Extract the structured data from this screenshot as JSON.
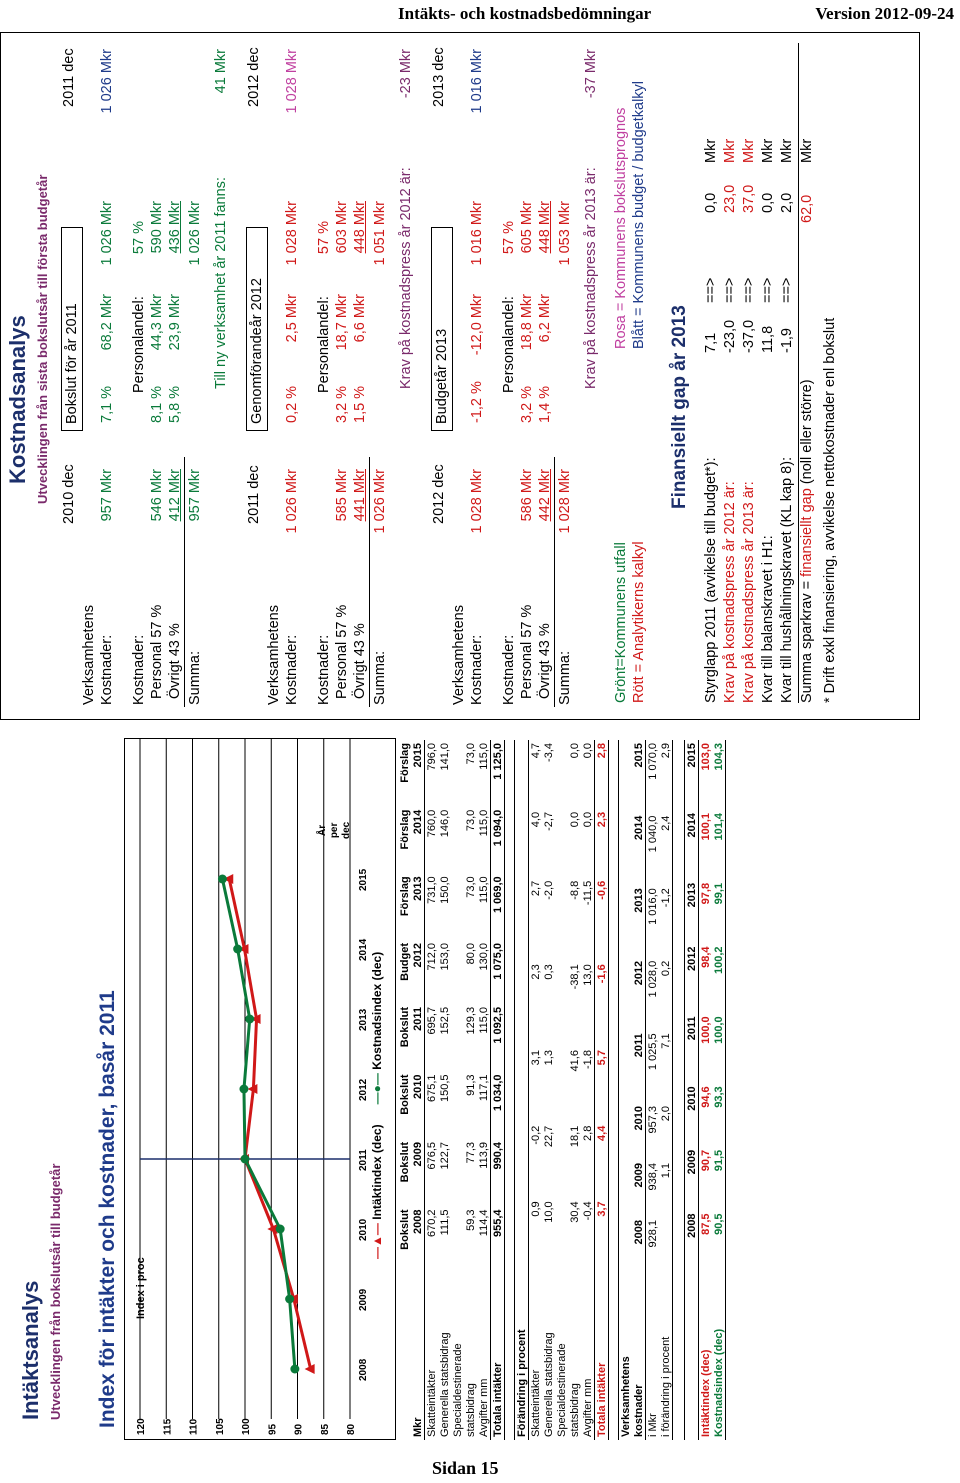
{
  "header": {
    "left": "Intäkts- och kostnadsbedömningar",
    "right": "Version 2012-09-24"
  },
  "footer": "Sidan 15",
  "left": {
    "title": "Intäktsanalys",
    "subtitle": "Utvecklingen från bokslutsår till budgetår",
    "chart_title": "Index för intäkter och kostnader, basår 2011",
    "ylabel": "Index i proc",
    "xaxis_note": [
      "År",
      "per",
      "dec"
    ],
    "legend": [
      "Intäktindex (dec)",
      "Kostnadsindex (dec)"
    ]
  },
  "chart_data": {
    "type": "line",
    "title": "Index för intäkter och kostnader, basår 2011",
    "ylabel": "Index i proc",
    "categories": [
      "2008",
      "2009",
      "2010",
      "2011",
      "2012",
      "2013",
      "2014",
      "2015"
    ],
    "yticks": [
      "80",
      "85",
      "90",
      "95",
      "100",
      "105",
      "110",
      "115",
      "120"
    ],
    "ylim": [
      80,
      120
    ],
    "series": [
      {
        "name": "Intäktindex (dec)",
        "color": "#d01818",
        "values": [
          87.5,
          90.7,
          94.6,
          100.0,
          98.4,
          97.8,
          100.1,
          103.0
        ]
      },
      {
        "name": "Kostnadsindex (dec)",
        "color": "#0a7a3a",
        "values": [
          90.5,
          91.5,
          93.3,
          100.0,
          100.2,
          99.1,
          101.4,
          104.3
        ]
      }
    ]
  },
  "t1": {
    "head1": [
      "",
      "Bokslut",
      "Bokslut",
      "Bokslut",
      "Bokslut",
      "Budget",
      "Förslag",
      "Förslag",
      "Förslag"
    ],
    "head2": [
      "Mkr",
      "2008",
      "2009",
      "2010",
      "2011",
      "2012",
      "2013",
      "2014",
      "2015"
    ],
    "rows": [
      [
        "Skatteintäkter",
        "670,2",
        "676,5",
        "675,1",
        "695,7",
        "712,0",
        "731,0",
        "760,0",
        "796,0"
      ],
      [
        "Generella statsbidrag",
        "111,5",
        "122,7",
        "150,5",
        "152,5",
        "153,0",
        "150,0",
        "146,0",
        "141,0"
      ],
      [
        "Specialdestinerade",
        "",
        "",
        "",
        "",
        "",
        "",
        "",
        ""
      ],
      [
        "statsbidrag",
        "59,3",
        "77,3",
        "91,3",
        "129,3",
        "80,0",
        "73,0",
        "73,0",
        "73,0"
      ],
      [
        "Avgifter mm",
        "114,4",
        "113,9",
        "117,1",
        "115,0",
        "130,0",
        "115,0",
        "115,0",
        "115,0"
      ]
    ],
    "total": [
      "Totala intäkter",
      "955,4",
      "990,4",
      "1 034,0",
      "1 092,5",
      "1 075,0",
      "1 069,0",
      "1 094,0",
      "1 125,0"
    ]
  },
  "t2": {
    "head": "Förändring i procent",
    "rows": [
      [
        "Skatteintäkter",
        "0,9",
        "-0,2",
        "3,1",
        "2,3",
        "2,7",
        "4,0",
        "4,7"
      ],
      [
        "Generella statsbidrag",
        "10,0",
        "22,7",
        "1,3",
        "0,3",
        "-2,0",
        "-2,7",
        "-3,4"
      ],
      [
        "Specialdestinerade",
        "",
        "",
        "",
        "",
        "",
        "",
        ""
      ],
      [
        "statsbidrag",
        "30,4",
        "18,1",
        "41,6",
        "-38,1",
        "-8,8",
        "0,0",
        "0,0"
      ],
      [
        "Avgifter mm",
        "-0,4",
        "2,8",
        "-1,8",
        "13,0",
        "-11,5",
        "0,0",
        "0,0"
      ]
    ],
    "total": [
      "Totala intäkter",
      "3,7",
      "4,4",
      "5,7",
      "-1,6",
      "-0,6",
      "2,3",
      "2,8"
    ]
  },
  "t3": {
    "h1": "Verksamhetens",
    "h2": [
      "kostnader",
      "2008",
      "2009",
      "2010",
      "2011",
      "2012",
      "2013",
      "2014",
      "2015"
    ],
    "r1": [
      "i Mkr",
      "928,1",
      "938,4",
      "957,3",
      "1 025,5",
      "1 028,0",
      "1 016,0",
      "1 040,0",
      "1 070,0"
    ],
    "r2": [
      "i förändring i procent",
      "",
      "1,1",
      "2,0",
      "7,1",
      "0,2",
      "-1,2",
      "2,4",
      "2,9"
    ]
  },
  "t4": {
    "head": [
      "",
      "2008",
      "2009",
      "2010",
      "2011",
      "2012",
      "2013",
      "2014",
      "2015"
    ],
    "r1": [
      "Intäktindex (dec)",
      "87,5",
      "90,7",
      "94,6",
      "100,0",
      "98,4",
      "97,8",
      "100,1",
      "103,0"
    ],
    "r2": [
      "Kostnadsindex (dec)",
      "90,5",
      "91,5",
      "93,3",
      "100,0",
      "100,2",
      "99,1",
      "101,4",
      "104,3"
    ]
  },
  "right": {
    "title": "Kostnadsanalys",
    "subtitle": "Utvecklingen från sista bokslutsår till första budgetår",
    "s1": {
      "d1": "2010 dec",
      "box": "Bokslut för år 2011",
      "d2": "2011 dec",
      "verk": "Verksamhetens",
      "kost": "Kostnader:",
      "v1": "957 Mkr",
      "p": "7,1 %",
      "m": "68,2 Mkr",
      "v2": "1 026 Mkr",
      "v3": "1 026 Mkr",
      "kost2": "Kostnader:",
      "pa": "Personalandel:",
      "pav": "57 %",
      "pers": "Personal 57 %",
      "pv1": "546 Mkr",
      "pp": "8,1 %",
      "pm": "44,3 Mkr",
      "pv2": "590 Mkr",
      "ovr": "Övrigt 43 %",
      "ov1": "412 Mkr",
      "op": "5,8 %",
      "om": "23,9 Mkr",
      "ov2": "436 Mkr",
      "sum": "Summa:",
      "sv1": "957 Mkr",
      "sv2": "1 026 Mkr",
      "note": "Till ny verksamhet år 2011 fanns:",
      "nv": "41 Mkr"
    },
    "s2": {
      "d1": "2011 dec",
      "box": "Genomförandeår 2012",
      "d2": "2012 dec",
      "verk": "Verksamhetens",
      "kost": "Kostnader:",
      "v1": "1 026 Mkr",
      "p": "0,2 %",
      "m": "2,5 Mkr",
      "v2": "1 028 Mkr",
      "v3": "1 028 Mkr",
      "kost2": "Kostnader:",
      "pa": "Personalandel:",
      "pav": "57 %",
      "pers": "Personal 57 %",
      "pv1": "585 Mkr",
      "pp": "3,2 %",
      "pm": "18,7 Mkr",
      "pv2": "603 Mkr",
      "ovr": "Övrigt 43 %",
      "ov1": "441 Mkr",
      "op": "1,5 %",
      "om": "6,6 Mkr",
      "ov2": "448 Mkr",
      "sum": "Summa:",
      "sv1": "1 026 Mkr",
      "sv2": "1 051 Mkr",
      "note": "Krav på kostnadspress år 2012 är:",
      "nv": "-23 Mkr"
    },
    "s3": {
      "d1": "2012 dec",
      "box": "Budgetår 2013",
      "d2": "2013 dec",
      "verk": "Verksamhetens",
      "kost": "Kostnader:",
      "v1": "1 028 Mkr",
      "p": "-1,2 %",
      "m": "-12,0 Mkr",
      "v2": "1 016 Mkr",
      "v3": "1 016 Mkr",
      "kost2": "Kostnader:",
      "pa": "Personalandel:",
      "pav": "57 %",
      "pers": "Personal 57 %",
      "pv1": "586 Mkr",
      "pp": "3,2 %",
      "pm": "18,8 Mkr",
      "pv2": "605 Mkr",
      "ovr": "Övrigt 43 %",
      "ov1": "442 Mkr",
      "op": "1,4 %",
      "om": "6,2 Mkr",
      "ov2": "448 Mkr",
      "sum": "Summa:",
      "sv1": "1 028 Mkr",
      "sv2": "1 053 Mkr",
      "note": "Krav på kostnadspress år 2013 är:",
      "nv": "-37 Mkr"
    },
    "leg": {
      "g": "Grönt=Kommunens utfall",
      "r": "Rött = Analytikerns kalkyl",
      "p": "Rosa = Kommunens bokslutsprognos",
      "b": "Blått = Kommunens budget / budgetkalkyl"
    },
    "gap": {
      "title": "Finansiellt gap år 2013",
      "rows": [
        [
          "Styrglapp 2011 (avvikelse till budget*):",
          "7,1",
          "==>",
          "0,0",
          "Mkr"
        ],
        [
          "Krav på kostnadspress år 2012 är:",
          "-23,0",
          "==>",
          "23,0",
          "Mkr"
        ],
        [
          "Krav på kostnadspress år 2013 är:",
          "-37,0",
          "==>",
          "37,0",
          "Mkr"
        ],
        [
          "Kvar till balanskravet i H1:",
          "11,8",
          "==>",
          "0,0",
          "Mkr"
        ],
        [
          "Kvar till hushållningskravet (KL kap 8):",
          "-1,9",
          "==>",
          "2,0",
          "Mkr"
        ]
      ],
      "sum1": "Summa sparkrav = ",
      "sum2": "finansiellt gap",
      "sum3": " (noll eller större)",
      "sumv": "62,0",
      "sumu": "Mkr",
      "foot": "* Drift exkl finansiering, avvikelse nettokostnader enl bokslut"
    }
  }
}
